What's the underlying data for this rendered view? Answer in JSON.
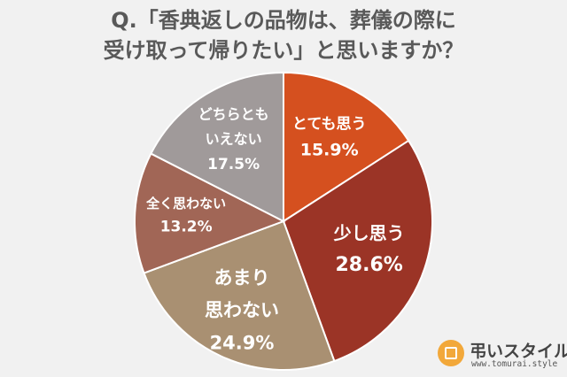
{
  "title": {
    "line1": "Q.「香典返しの品物は、葬儀の際に",
    "line2": "受け取って帰りたい」と思いますか？"
  },
  "chart_data": {
    "type": "pie",
    "slices": [
      {
        "label_lines": [
          "とても思う"
        ],
        "value": 15.9,
        "value_label": "15.9%",
        "color": "#d5501f"
      },
      {
        "label_lines": [
          "少し思う"
        ],
        "value": 28.6,
        "value_label": "28.6%",
        "color": "#9b3426"
      },
      {
        "label_lines": [
          "あまり",
          "思わない"
        ],
        "value": 24.9,
        "value_label": "24.9%",
        "color": "#a99072"
      },
      {
        "label_lines": [
          "全く思わない"
        ],
        "value": 13.2,
        "value_label": "13.2%",
        "color": "#a16656"
      },
      {
        "label_lines": [
          "どちらとも",
          "いえない"
        ],
        "value": 17.5,
        "value_label": "17.5%",
        "color": "#a09a9a"
      }
    ],
    "start_angle_deg": 0,
    "direction": "clockwise"
  },
  "logo": {
    "name": "弔いスタイル",
    "url": "www.tomurai.style",
    "icon": "tomurai-logo-icon"
  }
}
